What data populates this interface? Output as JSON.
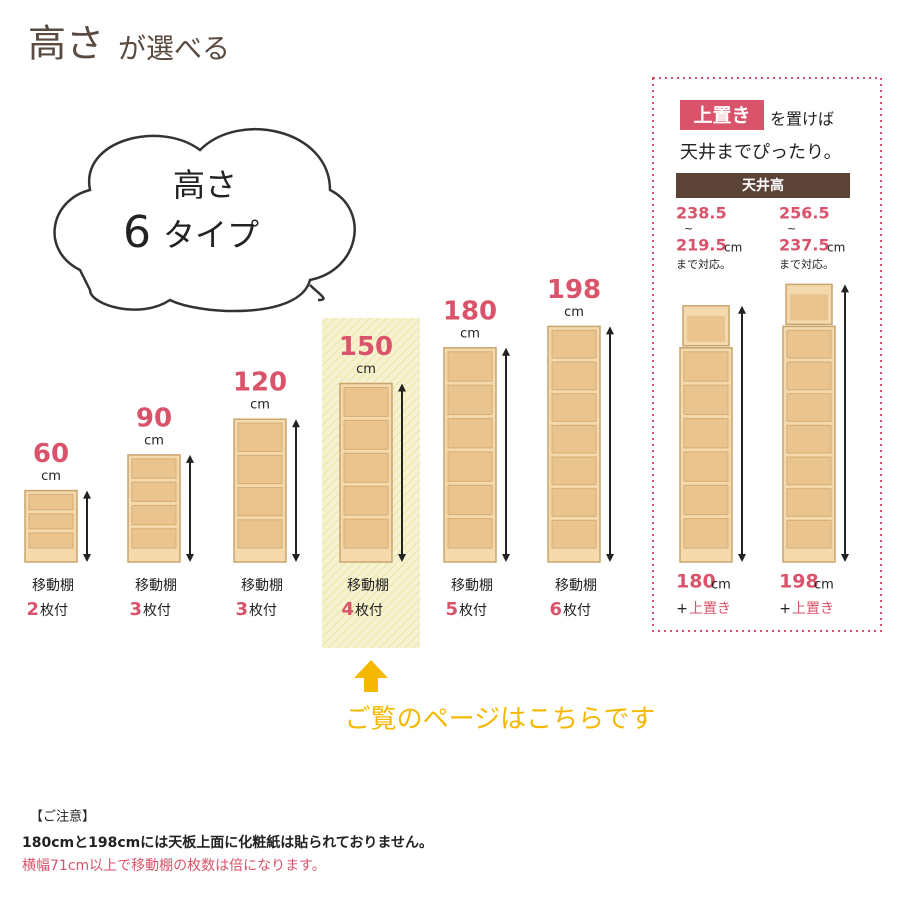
{
  "header": {
    "title_main": "高さ",
    "title_rest": "が選べる"
  },
  "cloud": {
    "line1": "高さ",
    "number": "6",
    "unit": "タイプ"
  },
  "shelves": [
    {
      "height": "60",
      "unit": "cm",
      "label": "移動棚",
      "count": "2",
      "count_unit": "枚付"
    },
    {
      "height": "90",
      "unit": "cm",
      "label": "移動棚",
      "count": "3",
      "count_unit": "枚付"
    },
    {
      "height": "120",
      "unit": "cm",
      "label": "移動棚",
      "count": "3",
      "count_unit": "枚付"
    },
    {
      "height": "150",
      "unit": "cm",
      "label": "移動棚",
      "count": "4",
      "count_unit": "枚付"
    },
    {
      "height": "180",
      "unit": "cm",
      "label": "移動棚",
      "count": "5",
      "count_unit": "枚付"
    },
    {
      "height": "198",
      "unit": "cm",
      "label": "移動棚",
      "count": "6",
      "count_unit": "枚付"
    }
  ],
  "callout": "ご覧のページはこちらです",
  "extension": {
    "badge": "上置き",
    "badge_rest": "を置けば",
    "line2": "天井までぴったり。",
    "header": "天井高",
    "options": [
      {
        "top": "238.5",
        "tilde": "~",
        "bottom": "219.5",
        "unit": "cm",
        "note": "まで対応。",
        "base": "180",
        "base_unit": "cm",
        "plus": "+",
        "addon": "上置き"
      },
      {
        "top": "256.5",
        "tilde": "~",
        "bottom": "237.5",
        "unit": "cm",
        "note": "まで対応。",
        "base": "198",
        "base_unit": "cm",
        "plus": "+",
        "addon": "上置き"
      }
    ]
  },
  "notice": {
    "title": "【ご注意】",
    "line1": "180cmと198cmには天板上面に化粧紙は貼られておりません。",
    "line2": "横幅71cm以上で移動棚の枚数は倍になります。"
  }
}
